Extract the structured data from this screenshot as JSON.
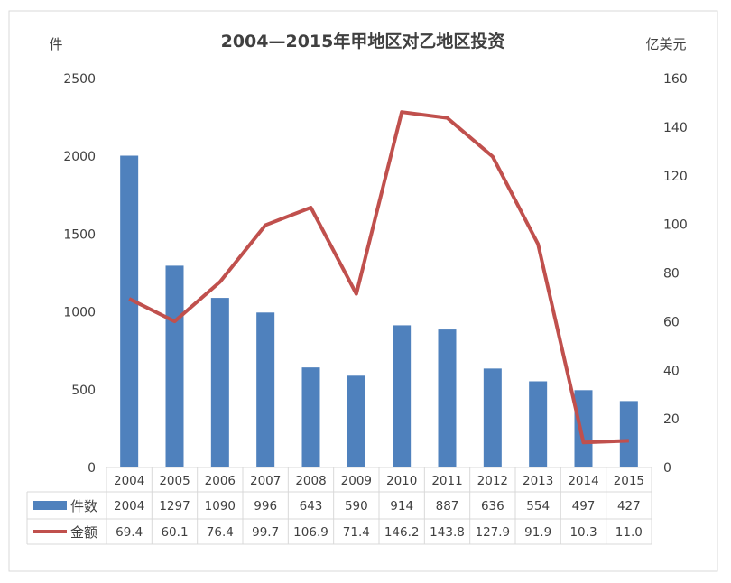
{
  "chart_data": {
    "type": "bar+line",
    "title": "2004—2015年甲地区对乙地区投资",
    "ylabel_left": "件",
    "ylabel_right": "亿美元",
    "categories": [
      "2004",
      "2005",
      "2006",
      "2007",
      "2008",
      "2009",
      "2010",
      "2011",
      "2012",
      "2013",
      "2014",
      "2015"
    ],
    "ylim_left": [
      0,
      2500
    ],
    "yticks_left": [
      "0",
      "500",
      "1000",
      "1500",
      "2000",
      "2500"
    ],
    "ylim_right": [
      0,
      160
    ],
    "yticks_right": [
      "0",
      "20",
      "40",
      "60",
      "80",
      "100",
      "120",
      "140",
      "160"
    ],
    "grid": false,
    "legend": "data-table",
    "series": [
      {
        "name": "件数",
        "type": "bar",
        "axis": "left",
        "color": "#4f81bd",
        "values": [
          2004,
          1297,
          1090,
          996,
          643,
          590,
          914,
          887,
          636,
          554,
          497,
          427
        ],
        "labels": [
          "2004",
          "1297",
          "1090",
          "996",
          "643",
          "590",
          "914",
          "887",
          "636",
          "554",
          "497",
          "427"
        ]
      },
      {
        "name": "金额",
        "type": "line",
        "axis": "right",
        "color": "#c0504d",
        "values": [
          69.4,
          60.1,
          76.4,
          99.7,
          106.9,
          71.4,
          146.2,
          143.8,
          127.9,
          91.9,
          10.3,
          11.0
        ],
        "labels": [
          "69.4",
          "60.1",
          "76.4",
          "99.7",
          "106.9",
          "71.4",
          "146.2",
          "143.8",
          "127.9",
          "91.9",
          "10.3",
          "11.0"
        ]
      }
    ]
  }
}
